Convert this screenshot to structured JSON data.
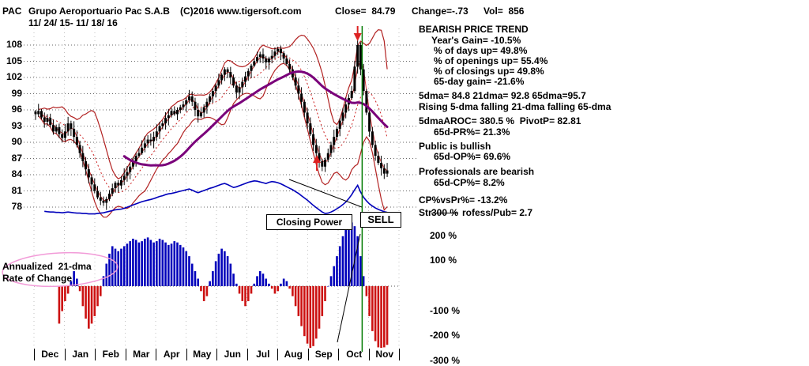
{
  "header": {
    "symbol": "PAC",
    "company": "Grupo Aeroportuario Pac S.A.B",
    "copyright": "(C)2016 www.tigersoft.com",
    "close": "Close=  84.79",
    "change": "Change=-.73",
    "volume": "Vol=  856",
    "date_range": "11/ 24/ 15- 11/ 18/ 16"
  },
  "stats_panel": {
    "title": "BEARISH PRICE TREND",
    "lines": [
      {
        "text": "Year's Gain= -10.5%"
      },
      {
        "text": "% of days up= 49.8%"
      },
      {
        "text": "% of openings up= 55.4%"
      },
      {
        "text": "% of closings up= 49.8%"
      },
      {
        "text": "65-day gain= -21.6%"
      },
      {
        "text": "5dma= 84.8 21dma= 92.8 65dma=95.7"
      },
      {
        "text": "Rising 5-dma falling 21-dma falling 65-dma"
      },
      {
        "text": "5dmaAROC= 380.5 %  PivotP= 82.81"
      },
      {
        "text": "65d-PR%= 21.3%"
      },
      {
        "text": "Public is bullish"
      },
      {
        "text": "65d-OP%= 69.6%"
      },
      {
        "text": "Professionals are bearish"
      },
      {
        "text": "65d-CP%= 8.2%"
      },
      {
        "text": "CP%vsPr%= -13.2%"
      }
    ],
    "strength_line": {
      "visible_prefix": "Str",
      "overlapping_axis_label": "300 %",
      "visible_suffix": "rofess/Pub= 2.7"
    }
  },
  "annotations": {
    "closing_power": "Closing Power",
    "sell": "SELL",
    "aroc_line1": "Annualized  21-dma",
    "aroc_line2": "Rate of Change"
  },
  "chart_data": {
    "type": "candlestick",
    "title": "PAC daily price with 21-dma trading bands, 65-dma, Closing Power line and Annualized 21-dma Rate of Change histogram",
    "x_months": [
      "Dec",
      "Jan",
      "Feb",
      "Mar",
      "Apr",
      "May",
      "Jun",
      "Jul",
      "Aug",
      "Sep",
      "Oct",
      "Nov"
    ],
    "price_axis": {
      "ticks": [
        108,
        105,
        102,
        99,
        96,
        93,
        90,
        87,
        84,
        81,
        78
      ],
      "min": 78,
      "max": 108
    },
    "pct_axis": {
      "ticks": [
        200,
        100,
        -100,
        -200,
        -300
      ],
      "top_tick": 300,
      "unit": "%"
    },
    "close": [
      95.2,
      95.8,
      94.6,
      93.8,
      94.5,
      93.2,
      92.0,
      92.8,
      91.5,
      90.8,
      92.0,
      93.5,
      92.5,
      91.0,
      89.5,
      88.0,
      86.5,
      85.0,
      83.5,
      82.2,
      81.0,
      79.8,
      79.2,
      78.8,
      79.5,
      80.5,
      81.5,
      82.5,
      82.0,
      83.0,
      83.8,
      84.5,
      85.5,
      86.5,
      87.5,
      88.0,
      89.0,
      89.8,
      90.5,
      90.2,
      91.0,
      92.0,
      93.0,
      93.5,
      94.5,
      95.0,
      95.8,
      95.2,
      96.0,
      96.5,
      97.0,
      97.8,
      98.5,
      97.5,
      96.0,
      94.8,
      95.5,
      96.5,
      97.5,
      98.5,
      99.5,
      100.5,
      101.5,
      102.5,
      103.5,
      103.0,
      102.0,
      100.5,
      99.2,
      100.2,
      101.2,
      102.2,
      103.2,
      104.2,
      105.0,
      105.8,
      106.3,
      105.5,
      104.8,
      105.5,
      106.0,
      106.8,
      107.3,
      106.5,
      105.5,
      104.5,
      103.5,
      102.0,
      100.5,
      99.0,
      97.5,
      95.5,
      93.5,
      91.5,
      89.5,
      88.0,
      86.5,
      85.5,
      86.8,
      88.0,
      89.5,
      91.0,
      92.5,
      94.0,
      95.5,
      97.0,
      98.2,
      99.5,
      104.0,
      108.0,
      103.5,
      99.5,
      95.5,
      92.0,
      89.5,
      87.5,
      86.2,
      85.2,
      84.2,
      84.79
    ],
    "closing_power": [
      12,
      11,
      10,
      10,
      9,
      8,
      8,
      7,
      7,
      6,
      7,
      8,
      7,
      6,
      5,
      5,
      4,
      4,
      3,
      3,
      3,
      4,
      5,
      6,
      8,
      10,
      12,
      14,
      15,
      16,
      18,
      21,
      24,
      27,
      30,
      33,
      36,
      38,
      40,
      42,
      44,
      47,
      50,
      52,
      55,
      57,
      58,
      60,
      62,
      64,
      66,
      68,
      70,
      67,
      63,
      60,
      63,
      66,
      69,
      72,
      74,
      77,
      80,
      83,
      85,
      82,
      78,
      74,
      76,
      79,
      82,
      85,
      88,
      90,
      92,
      91,
      89,
      87,
      85,
      88,
      90,
      89,
      87,
      84,
      80,
      76,
      72,
      68,
      63,
      58,
      52,
      46,
      40,
      33,
      26,
      20,
      14,
      8,
      4,
      5,
      8,
      12,
      17,
      22,
      28,
      35,
      44,
      55,
      68,
      80,
      62,
      48,
      38,
      30,
      24,
      19,
      15,
      12,
      9,
      7
    ],
    "aroc_pct": [
      -20,
      -60,
      -120,
      -180,
      -220,
      -250,
      -230,
      -190,
      -150,
      -100,
      -60,
      -30,
      20,
      60,
      30,
      -20,
      -80,
      -130,
      -170,
      -150,
      -120,
      -80,
      -40,
      40,
      90,
      130,
      160,
      150,
      140,
      150,
      160,
      170,
      180,
      190,
      185,
      175,
      180,
      190,
      195,
      185,
      175,
      180,
      190,
      185,
      175,
      165,
      170,
      180,
      175,
      165,
      155,
      140,
      120,
      90,
      60,
      30,
      -20,
      -60,
      -40,
      20,
      60,
      100,
      130,
      150,
      140,
      120,
      90,
      50,
      10,
      -30,
      -60,
      -80,
      -60,
      -30,
      10,
      40,
      60,
      50,
      30,
      10,
      -10,
      -30,
      -20,
      10,
      30,
      20,
      -10,
      -40,
      -80,
      -120,
      -160,
      -200,
      -230,
      -250,
      -240,
      -210,
      -170,
      -120,
      -60,
      0,
      40,
      80,
      120,
      160,
      200,
      230,
      250,
      255,
      240,
      200,
      120,
      40,
      -40,
      -120,
      -180,
      -220,
      -245,
      -255,
      -245,
      -235
    ],
    "signals": {
      "sell_index": 110,
      "sell_price": 108.0,
      "buy_arrow_index": 96,
      "peak_arrow_index": 109
    },
    "colors": {
      "candle": "#000000",
      "band": "#b22222",
      "dma21": "#cc2222",
      "dma5": "#cc2222",
      "dma65": "#7a007a",
      "closing_power": "#0000bb",
      "hist_pos": "#0000bb",
      "hist_neg": "#cc1111",
      "signal_line": "#007a00",
      "arrow": "#dd2222",
      "ellipse": "#f29bd8",
      "grid": "#666666"
    }
  }
}
